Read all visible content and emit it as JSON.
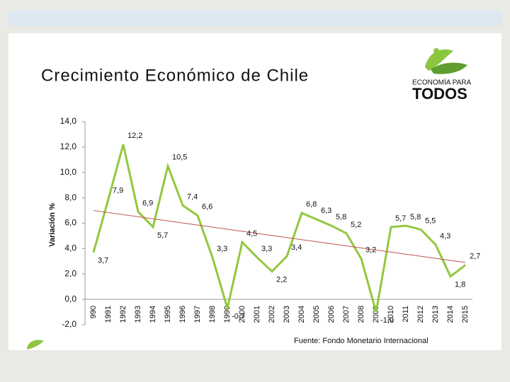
{
  "chart_data": {
    "type": "line",
    "title": "Crecimiento Económico de Chile",
    "y_label": "Variación %",
    "categories": [
      "990",
      "1991",
      "1992",
      "1993",
      "1994",
      "1995",
      "1996",
      "1997",
      "1998",
      "1999",
      "2000",
      "2001",
      "2002",
      "2003",
      "2004",
      "2005",
      "2006",
      "2007",
      "2008",
      "2009",
      "2010",
      "2011",
      "2012",
      "2013",
      "2014",
      "2015"
    ],
    "values": [
      3.7,
      7.9,
      12.2,
      6.9,
      5.7,
      10.5,
      7.4,
      6.6,
      3.3,
      -0.7,
      4.5,
      3.3,
      2.2,
      3.4,
      6.8,
      6.3,
      5.8,
      5.2,
      3.2,
      -1.0,
      5.7,
      5.8,
      5.5,
      4.3,
      1.8,
      2.7
    ],
    "value_labels": [
      "3,7",
      "7,9",
      "12,2",
      "6,9",
      "5,7",
      "10,5",
      "7,4",
      "6,6",
      "3,3",
      "-0,7",
      "4,5",
      "3,3",
      "2,2",
      "3,4",
      "6,8",
      "6,3",
      "5,8",
      "5,2",
      "3,2",
      "-1,0",
      "5,7",
      "5,8",
      "5,5",
      "4,3",
      "1,8",
      "2,7"
    ],
    "color": "#92c83e",
    "trendline": {
      "color": "#c0504d",
      "start": 7.0,
      "end": 2.9
    },
    "ylim": [
      -2,
      14
    ],
    "yticks": [
      {
        "value": -2,
        "label": "-2,0"
      },
      {
        "value": 0,
        "label": "0,0"
      },
      {
        "value": 2,
        "label": "2,0"
      },
      {
        "value": 4,
        "label": "4,0"
      },
      {
        "value": 6,
        "label": "6,0"
      },
      {
        "value": 8,
        "label": "8,0"
      },
      {
        "value": 10,
        "label": "10,0"
      },
      {
        "value": 12,
        "label": "12,0"
      },
      {
        "value": 14,
        "label": "14,0"
      }
    ]
  },
  "logo": {
    "top": "ECONOMÍA PARA",
    "bottom": "TODOS"
  },
  "source": "Fuente: Fondo Monetario Internacional"
}
